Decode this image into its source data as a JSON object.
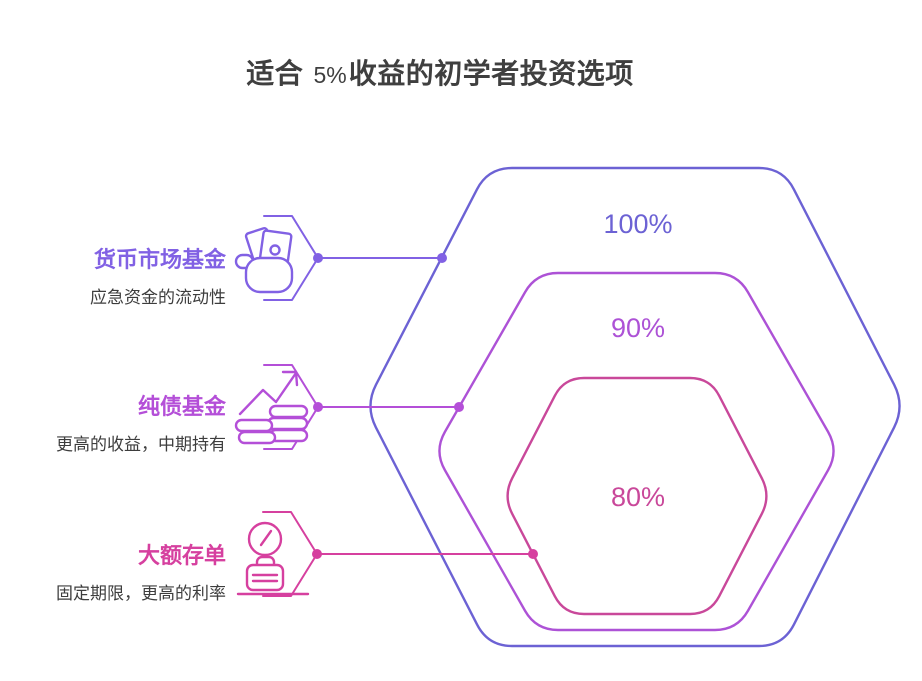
{
  "title": {
    "prefix": "适合 ",
    "rate": "5%",
    "suffix": "收益的初学者投资选项"
  },
  "items": [
    {
      "label": "货币市场基金",
      "description": "应急资金的流动性",
      "value": "100%",
      "accent": "#8161e4",
      "shape_color": "#6c62d4",
      "icon": "hand-cash-icon"
    },
    {
      "label": "纯债基金",
      "description": "更高的收益，中期持有",
      "value": "90%",
      "accent": "#b44fd8",
      "shape_color": "#ad52d6",
      "icon": "trend-coins-icon"
    },
    {
      "label": "大额存单",
      "description": "固定期限，更高的利率",
      "value": "80%",
      "accent": "#d6409f",
      "shape_color": "#c9489a",
      "icon": "clock-savings-icon"
    }
  ],
  "colors": {
    "title_text": "#3f3f3f",
    "body_text": "#3d3d3d",
    "background": "#ffffff"
  }
}
